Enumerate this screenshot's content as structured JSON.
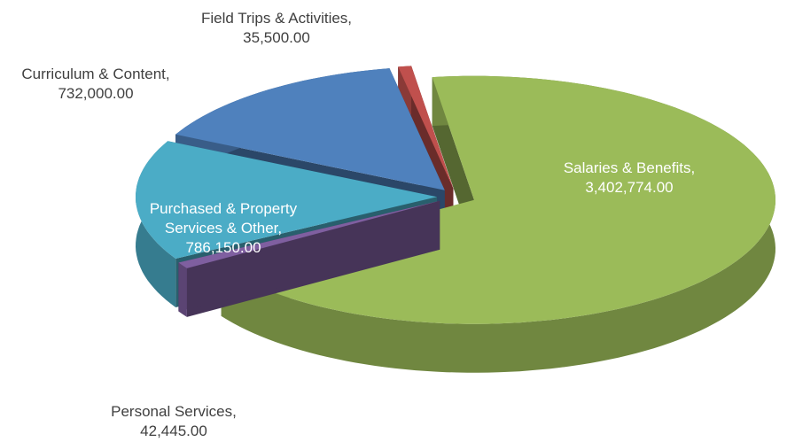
{
  "chart_data": {
    "type": "pie3d",
    "categories": [
      "Salaries & Benefits,",
      "Personal Services,",
      "Purchased & Property Services & Other,",
      "Curriculum & Content,",
      "Field Trips & Activities,"
    ],
    "values": [
      3402774,
      42445,
      786150,
      732000,
      35500
    ],
    "value_labels": [
      "3,402,774.00",
      "42,445.00",
      "786,150.00",
      "732,000.00",
      "35,500.00"
    ],
    "colors": [
      "#9bbb59",
      "#7f5fa0",
      "#4bacc6",
      "#4f81bd",
      "#c0504d"
    ]
  }
}
